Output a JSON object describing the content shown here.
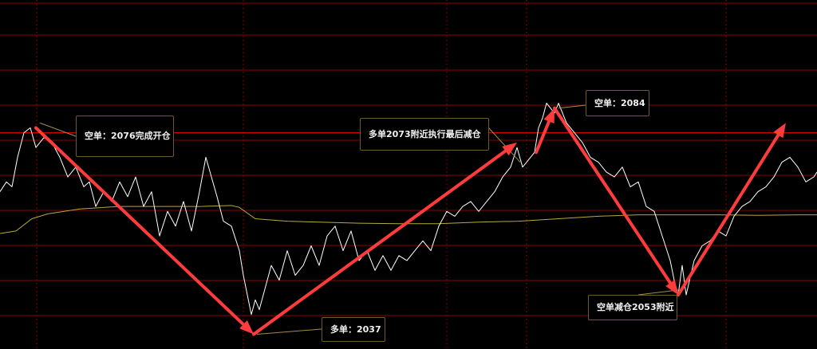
{
  "chart_data": {
    "type": "line",
    "theme": {
      "background": "#000000",
      "grid": "#8b0000",
      "price_line": "#ffffff",
      "ma_line": "#b8a83a",
      "arrow": "#ff3b3b",
      "callout_border": "#6e5a2a"
    },
    "grid": true,
    "price_ylim": [
      2029,
      2100
    ],
    "highlighted_level": 2073,
    "series": [
      {
        "role": "price",
        "x": [
          0,
          8,
          15,
          22,
          30,
          38,
          45,
          55,
          65,
          75,
          85,
          95,
          105,
          112,
          120,
          130,
          140,
          150,
          160,
          170,
          180,
          190,
          200,
          210,
          220,
          230,
          240,
          250,
          258,
          265,
          272,
          280,
          290,
          300,
          305,
          310,
          315,
          320,
          325,
          330,
          340,
          350,
          360,
          370,
          380,
          390,
          400,
          410,
          420,
          430,
          440,
          450,
          460,
          470,
          480,
          490,
          500,
          510,
          520,
          530,
          540,
          550,
          560,
          570,
          580,
          590,
          600,
          610,
          620,
          630,
          640,
          648,
          655,
          660,
          665,
          670,
          675,
          680,
          685,
          690,
          695,
          700,
          710,
          720,
          730,
          740,
          750,
          760,
          770,
          780,
          790,
          800,
          810,
          820,
          830,
          840,
          845,
          850,
          855,
          860,
          870,
          880,
          890,
          900,
          910,
          920,
          930,
          940,
          950,
          960,
          970,
          980,
          990,
          1000,
          1010,
          1020,
          1024
        ],
        "values": [
          2061,
          2063,
          2062,
          2068,
          2073,
          2074,
          2070,
          2072,
          2071,
          2068,
          2064,
          2066,
          2062,
          2063,
          2058,
          2061,
          2059,
          2063,
          2060,
          2064,
          2058,
          2061,
          2052,
          2057,
          2054,
          2059,
          2053,
          2061,
          2068,
          2064,
          2060,
          2055,
          2054,
          2049,
          2044,
          2040,
          2036,
          2039,
          2037,
          2040,
          2046,
          2043,
          2049,
          2044,
          2046,
          2050,
          2046,
          2052,
          2054,
          2049,
          2053,
          2047,
          2049,
          2045,
          2048,
          2045,
          2048,
          2047,
          2049,
          2051,
          2049,
          2054,
          2057,
          2056,
          2058,
          2059,
          2057,
          2059,
          2061,
          2064,
          2066,
          2070,
          2066,
          2067,
          2068,
          2069,
          2074,
          2076,
          2079,
          2078,
          2077,
          2079,
          2075,
          2073,
          2071,
          2068,
          2067,
          2065,
          2064,
          2066,
          2062,
          2063,
          2058,
          2057,
          2052,
          2047,
          2043,
          2040,
          2046,
          2040,
          2047,
          2050,
          2051,
          2053,
          2052,
          2056,
          2058,
          2059,
          2061,
          2062,
          2064,
          2067,
          2068,
          2066,
          2063,
          2064,
          2065
        ]
      },
      {
        "role": "moving_average",
        "x": [
          0,
          20,
          40,
          60,
          100,
          150,
          200,
          250,
          290,
          300,
          320,
          360,
          400,
          450,
          500,
          550,
          600,
          650,
          700,
          750,
          800,
          850,
          900,
          950,
          1000,
          1024
        ],
        "values": [
          2052.5,
          2053.0,
          2055.5,
          2056.5,
          2057.5,
          2058.0,
          2058.0,
          2058.0,
          2058.2,
          2057.8,
          2055.5,
          2055.0,
          2054.8,
          2054.6,
          2054.5,
          2054.5,
          2054.8,
          2055.0,
          2055.5,
          2056.0,
          2056.3,
          2056.3,
          2056.3,
          2056.2,
          2056.3,
          2056.3
        ]
      }
    ],
    "arrows": [
      {
        "from": [
          45,
          2074
        ],
        "to": [
          318,
          2032
        ]
      },
      {
        "from": [
          318,
          2032
        ],
        "to": [
          648,
          2071
        ]
      },
      {
        "from": [
          672,
          2069
        ],
        "to": [
          695,
          2078
        ]
      },
      {
        "from": [
          695,
          2078
        ],
        "to": [
          850,
          2040
        ]
      },
      {
        "from": [
          850,
          2040
        ],
        "to": [
          985,
          2075
        ]
      }
    ],
    "annotations": [
      {
        "id": "c0",
        "text": "空单：2076完成开仓",
        "anchor": [
          50,
          2075
        ]
      },
      {
        "id": "c1",
        "text": "多单2073附近执行最后减仓",
        "anchor": [
          652,
          2067
        ]
      },
      {
        "id": "c2",
        "text": "空单：2084",
        "anchor": [
          700,
          2078
        ]
      },
      {
        "id": "c3",
        "text": "多单：2037",
        "anchor": [
          322,
          2032
        ]
      },
      {
        "id": "c4",
        "text": "空单减仓2053附近",
        "anchor": [
          850,
          2041
        ]
      }
    ]
  }
}
